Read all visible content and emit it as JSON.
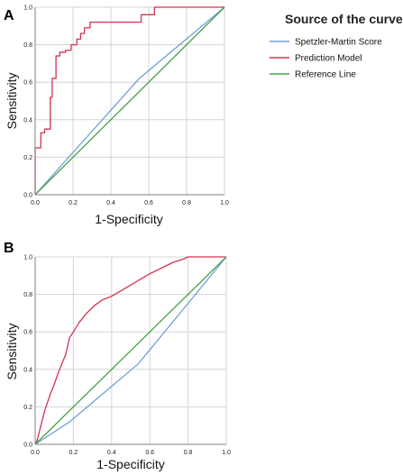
{
  "chart_data": [
    {
      "panel_label": "A",
      "type": "line",
      "xlabel": "1-Specificity",
      "ylabel": "Sensitivity",
      "xlim": [
        0,
        1
      ],
      "ylim": [
        0,
        1
      ],
      "xticks": [
        "0.0",
        "0.2",
        "0.4",
        "0.6",
        "0.8",
        "1.0"
      ],
      "yticks": [
        "0.0",
        "0.2",
        "0.4",
        "0.6",
        "0.8",
        "1.0"
      ],
      "grid": true,
      "series": [
        {
          "name": "Spetzler-Martin Score",
          "color": "#6fa0d8",
          "x": [
            0,
            0.55,
            1.0
          ],
          "y": [
            0,
            0.62,
            1.0
          ]
        },
        {
          "name": "Prediction Model",
          "color": "#d2334f",
          "x": [
            0,
            0,
            0.03,
            0.03,
            0.05,
            0.05,
            0.08,
            0.08,
            0.09,
            0.09,
            0.11,
            0.11,
            0.13,
            0.13,
            0.16,
            0.16,
            0.19,
            0.19,
            0.22,
            0.22,
            0.24,
            0.24,
            0.26,
            0.26,
            0.29,
            0.29,
            0.56,
            0.56,
            0.63,
            0.63,
            1.0
          ],
          "y": [
            0,
            0.25,
            0.25,
            0.33,
            0.33,
            0.35,
            0.35,
            0.52,
            0.52,
            0.62,
            0.62,
            0.74,
            0.74,
            0.76,
            0.76,
            0.77,
            0.77,
            0.8,
            0.8,
            0.83,
            0.83,
            0.86,
            0.86,
            0.89,
            0.89,
            0.92,
            0.92,
            0.96,
            0.96,
            1.0,
            1.0
          ]
        },
        {
          "name": "Reference Line",
          "color": "#4aa14a",
          "x": [
            0,
            1
          ],
          "y": [
            0,
            1
          ]
        }
      ]
    },
    {
      "panel_label": "B",
      "type": "line",
      "xlabel": "1-Specificity",
      "ylabel": "Sensitivity",
      "xlim": [
        0,
        1
      ],
      "ylim": [
        0,
        1
      ],
      "xticks": [
        "0.0",
        "0.2",
        "0.4",
        "0.6",
        "0.8",
        "1.0"
      ],
      "yticks": [
        "0.0",
        "0.2",
        "0.4",
        "0.6",
        "0.8",
        "1.0"
      ],
      "grid": true,
      "series": [
        {
          "name": "Spetzler-Martin Score",
          "color": "#6fa0d8",
          "x": [
            0,
            0.18,
            0.54,
            1.0
          ],
          "y": [
            0,
            0.12,
            0.43,
            1.0
          ]
        },
        {
          "name": "Prediction Model",
          "color": "#d2334f",
          "x": [
            0,
            0.01,
            0.02,
            0.03,
            0.04,
            0.05,
            0.06,
            0.08,
            0.1,
            0.12,
            0.14,
            0.16,
            0.18,
            0.2,
            0.23,
            0.27,
            0.31,
            0.35,
            0.4,
            0.45,
            0.5,
            0.55,
            0.6,
            0.66,
            0.72,
            0.78,
            0.8,
            0.85,
            1.0
          ],
          "y": [
            0,
            0.02,
            0.06,
            0.1,
            0.14,
            0.18,
            0.21,
            0.27,
            0.32,
            0.38,
            0.43,
            0.48,
            0.57,
            0.6,
            0.65,
            0.7,
            0.74,
            0.77,
            0.79,
            0.82,
            0.85,
            0.88,
            0.91,
            0.94,
            0.97,
            0.99,
            1.0,
            1.0,
            1.0
          ]
        },
        {
          "name": "Reference Line",
          "color": "#4aa14a",
          "x": [
            0,
            1
          ],
          "y": [
            0,
            1
          ]
        }
      ]
    }
  ],
  "legend": {
    "title": "Source of the curve",
    "placement": "top-right",
    "items": [
      {
        "label": "Spetzler-Martin Score",
        "color": "#6fa0d8"
      },
      {
        "label": "Prediction Model",
        "color": "#d2334f"
      },
      {
        "label": "Reference Line",
        "color": "#4aa14a"
      }
    ]
  },
  "axis_color": "#7f7f7f",
  "grid_color": "#d4d4d4"
}
